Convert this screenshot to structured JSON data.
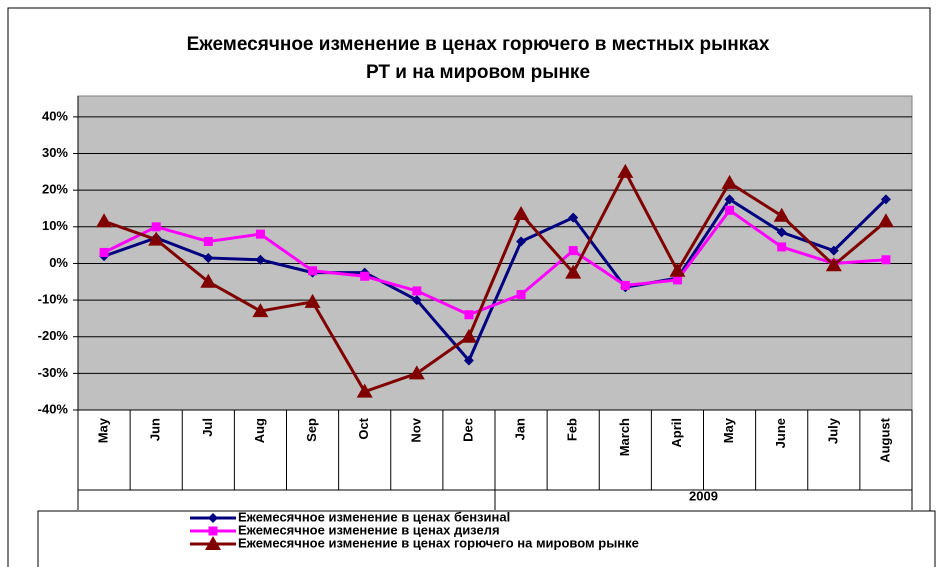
{
  "chart_data": {
    "type": "line",
    "title": [
      "Ежемесячное изменение в ценах горючего в местных рынках",
      "РТ и на мировом рынке"
    ],
    "categories": [
      "May",
      "Jun",
      "Jul",
      "Aug",
      "Sep",
      "Oct",
      "Nov",
      "Dec",
      "Jan",
      "Feb",
      "March",
      "April",
      "May",
      "June",
      "July",
      "August"
    ],
    "category_groups": [
      null,
      null,
      null,
      null,
      null,
      null,
      null,
      null,
      "2009",
      "2009",
      "2009",
      "2009",
      "2009",
      "2009",
      "2009",
      "2009"
    ],
    "series": [
      {
        "name": "Ежемесячное изменение в ценах бензинаl",
        "color": "#000080",
        "marker": "diamond",
        "values": [
          2,
          7,
          1.5,
          1,
          -2.5,
          -2.5,
          -10,
          -26.5,
          6,
          12.5,
          -6.5,
          -4,
          17.5,
          8.5,
          3.5,
          17.5
        ]
      },
      {
        "name": "Ежемесячное изменение в ценах дизеля",
        "color": "#ff00ff",
        "marker": "square",
        "values": [
          3,
          10,
          6,
          8,
          -2,
          -3.5,
          -7.5,
          -14,
          -8.5,
          3.5,
          -6,
          -4.5,
          14.5,
          4.5,
          0,
          1
        ]
      },
      {
        "name": "Ежемесячное изменение в ценах горючего на мировом рынке",
        "color": "#800000",
        "marker": "triangle",
        "values": [
          11.5,
          6.5,
          -5,
          -13,
          -10.5,
          -35,
          -30,
          -20,
          13.5,
          -2.5,
          25,
          -2,
          22,
          13,
          -0.5,
          11.5
        ]
      }
    ],
    "ylim": [
      -40,
      45.7
    ],
    "yticks": [
      {
        "value": -40,
        "label": "-40%"
      },
      {
        "value": -30,
        "label": "-30%"
      },
      {
        "value": -20,
        "label": "-20%"
      },
      {
        "value": -10,
        "label": "-10%"
      },
      {
        "value": 0,
        "label": "0%"
      },
      {
        "value": 10,
        "label": "10%"
      },
      {
        "value": 20,
        "label": "20%"
      },
      {
        "value": 30,
        "label": "30%"
      },
      {
        "value": 40,
        "label": "40%"
      }
    ],
    "grid": true,
    "plot_background": "#c0c0c0"
  }
}
